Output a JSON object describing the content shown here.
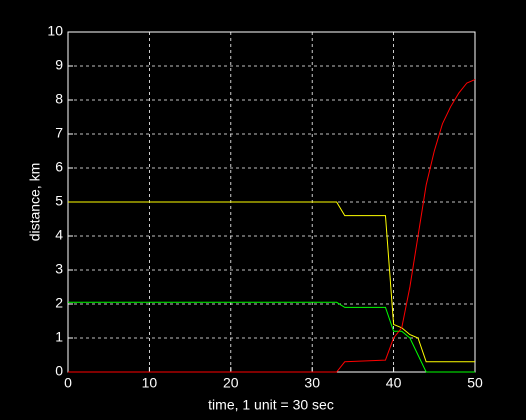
{
  "chart_data": {
    "type": "line",
    "x_label": "time, 1 unit = 30 sec",
    "y_label": "distance, km",
    "x": [
      0,
      33,
      34,
      39,
      40,
      41,
      42,
      43,
      44,
      45,
      46,
      47,
      48,
      49,
      50
    ],
    "series": [
      {
        "color": "#ffff00",
        "values": [
          5,
          5,
          4.6,
          4.6,
          1.4,
          1.3,
          1.1,
          1.0,
          0.3,
          0.3,
          0.3,
          0.3,
          0.3,
          0.3,
          0.3
        ]
      },
      {
        "color": "#00ff00",
        "values": [
          2.05,
          2.05,
          1.9,
          1.9,
          1.2,
          1.2,
          1.0,
          0.5,
          0,
          0,
          0,
          0,
          0,
          0,
          0
        ]
      },
      {
        "color": "#ff0000",
        "values": [
          0,
          0,
          0.3,
          0.35,
          1.0,
          1.3,
          2.5,
          4.0,
          5.5,
          6.5,
          7.3,
          7.8,
          8.2,
          8.5,
          8.6
        ]
      }
    ],
    "xlim": [
      0,
      50
    ],
    "xticks": [
      0,
      10,
      20,
      30,
      40,
      50
    ],
    "ylim": [
      0,
      10
    ],
    "yticks": [
      0,
      1,
      2,
      3,
      4,
      5,
      6,
      7,
      8,
      9,
      10
    ],
    "grid": true
  }
}
